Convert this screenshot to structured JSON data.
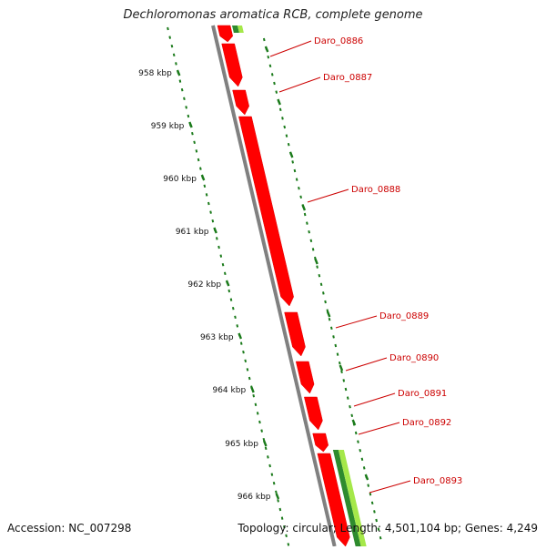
{
  "title": "Dechloromonas aromatica RCB, complete genome",
  "footer": {
    "accession": "Accession: NC_007298",
    "summary": "Topology: circular; Length: 4,501,104 bp; Genes: 4,249"
  },
  "scale_labels": [
    "958 kbp",
    "959 kbp",
    "960 kbp",
    "961 kbp",
    "962 kbp",
    "963 kbp",
    "964 kbp",
    "965 kbp",
    "966 kbp"
  ],
  "gene_labels": [
    "Daro_0886",
    "Daro_0887",
    "Daro_0888",
    "Daro_0889",
    "Daro_0890",
    "Daro_0891",
    "Daro_0892",
    "Daro_0893"
  ],
  "colors": {
    "gene": "#ff0000",
    "gene_label": "#cc0000",
    "backbone": "#808080",
    "ruler": "#1a7a1a",
    "light_green": "#a5e84a",
    "dark_green": "#2e8b2e"
  }
}
